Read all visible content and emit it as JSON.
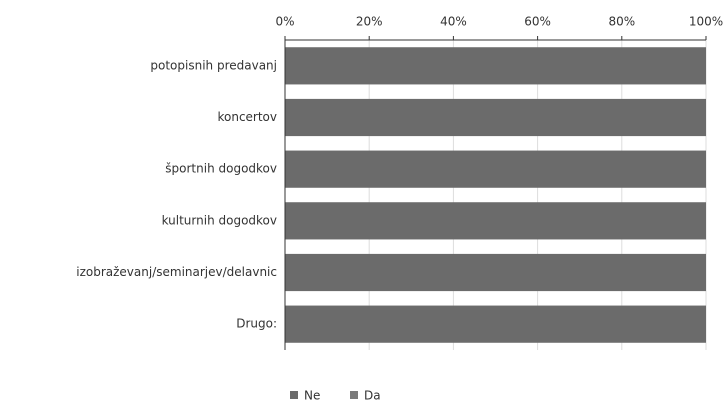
{
  "chart_data": {
    "type": "stacked-bar-horizontal",
    "categories": [
      "potopisnih predavanj",
      "koncertov",
      "športnih dogodkov",
      "kulturnih dogodkov",
      "izobraževanj/seminarjev/delavnic",
      "Drugo:"
    ],
    "series": [
      {
        "name": "Ne",
        "color": "#6b6b6b",
        "values": [
          100,
          100,
          100,
          100,
          100,
          100
        ]
      },
      {
        "name": "Da",
        "color": "#7a7a7a",
        "values": [
          0,
          0,
          0,
          0,
          0,
          0
        ]
      }
    ],
    "xlim": [
      0,
      100
    ],
    "xticks": [
      {
        "value": 0,
        "label": "0%"
      },
      {
        "value": 20,
        "label": "20%"
      },
      {
        "value": 40,
        "label": "40%"
      },
      {
        "value": 60,
        "label": "60%"
      },
      {
        "value": 80,
        "label": "80%"
      },
      {
        "value": 100,
        "label": "100%"
      }
    ],
    "grid": true,
    "legend": "bottom"
  }
}
